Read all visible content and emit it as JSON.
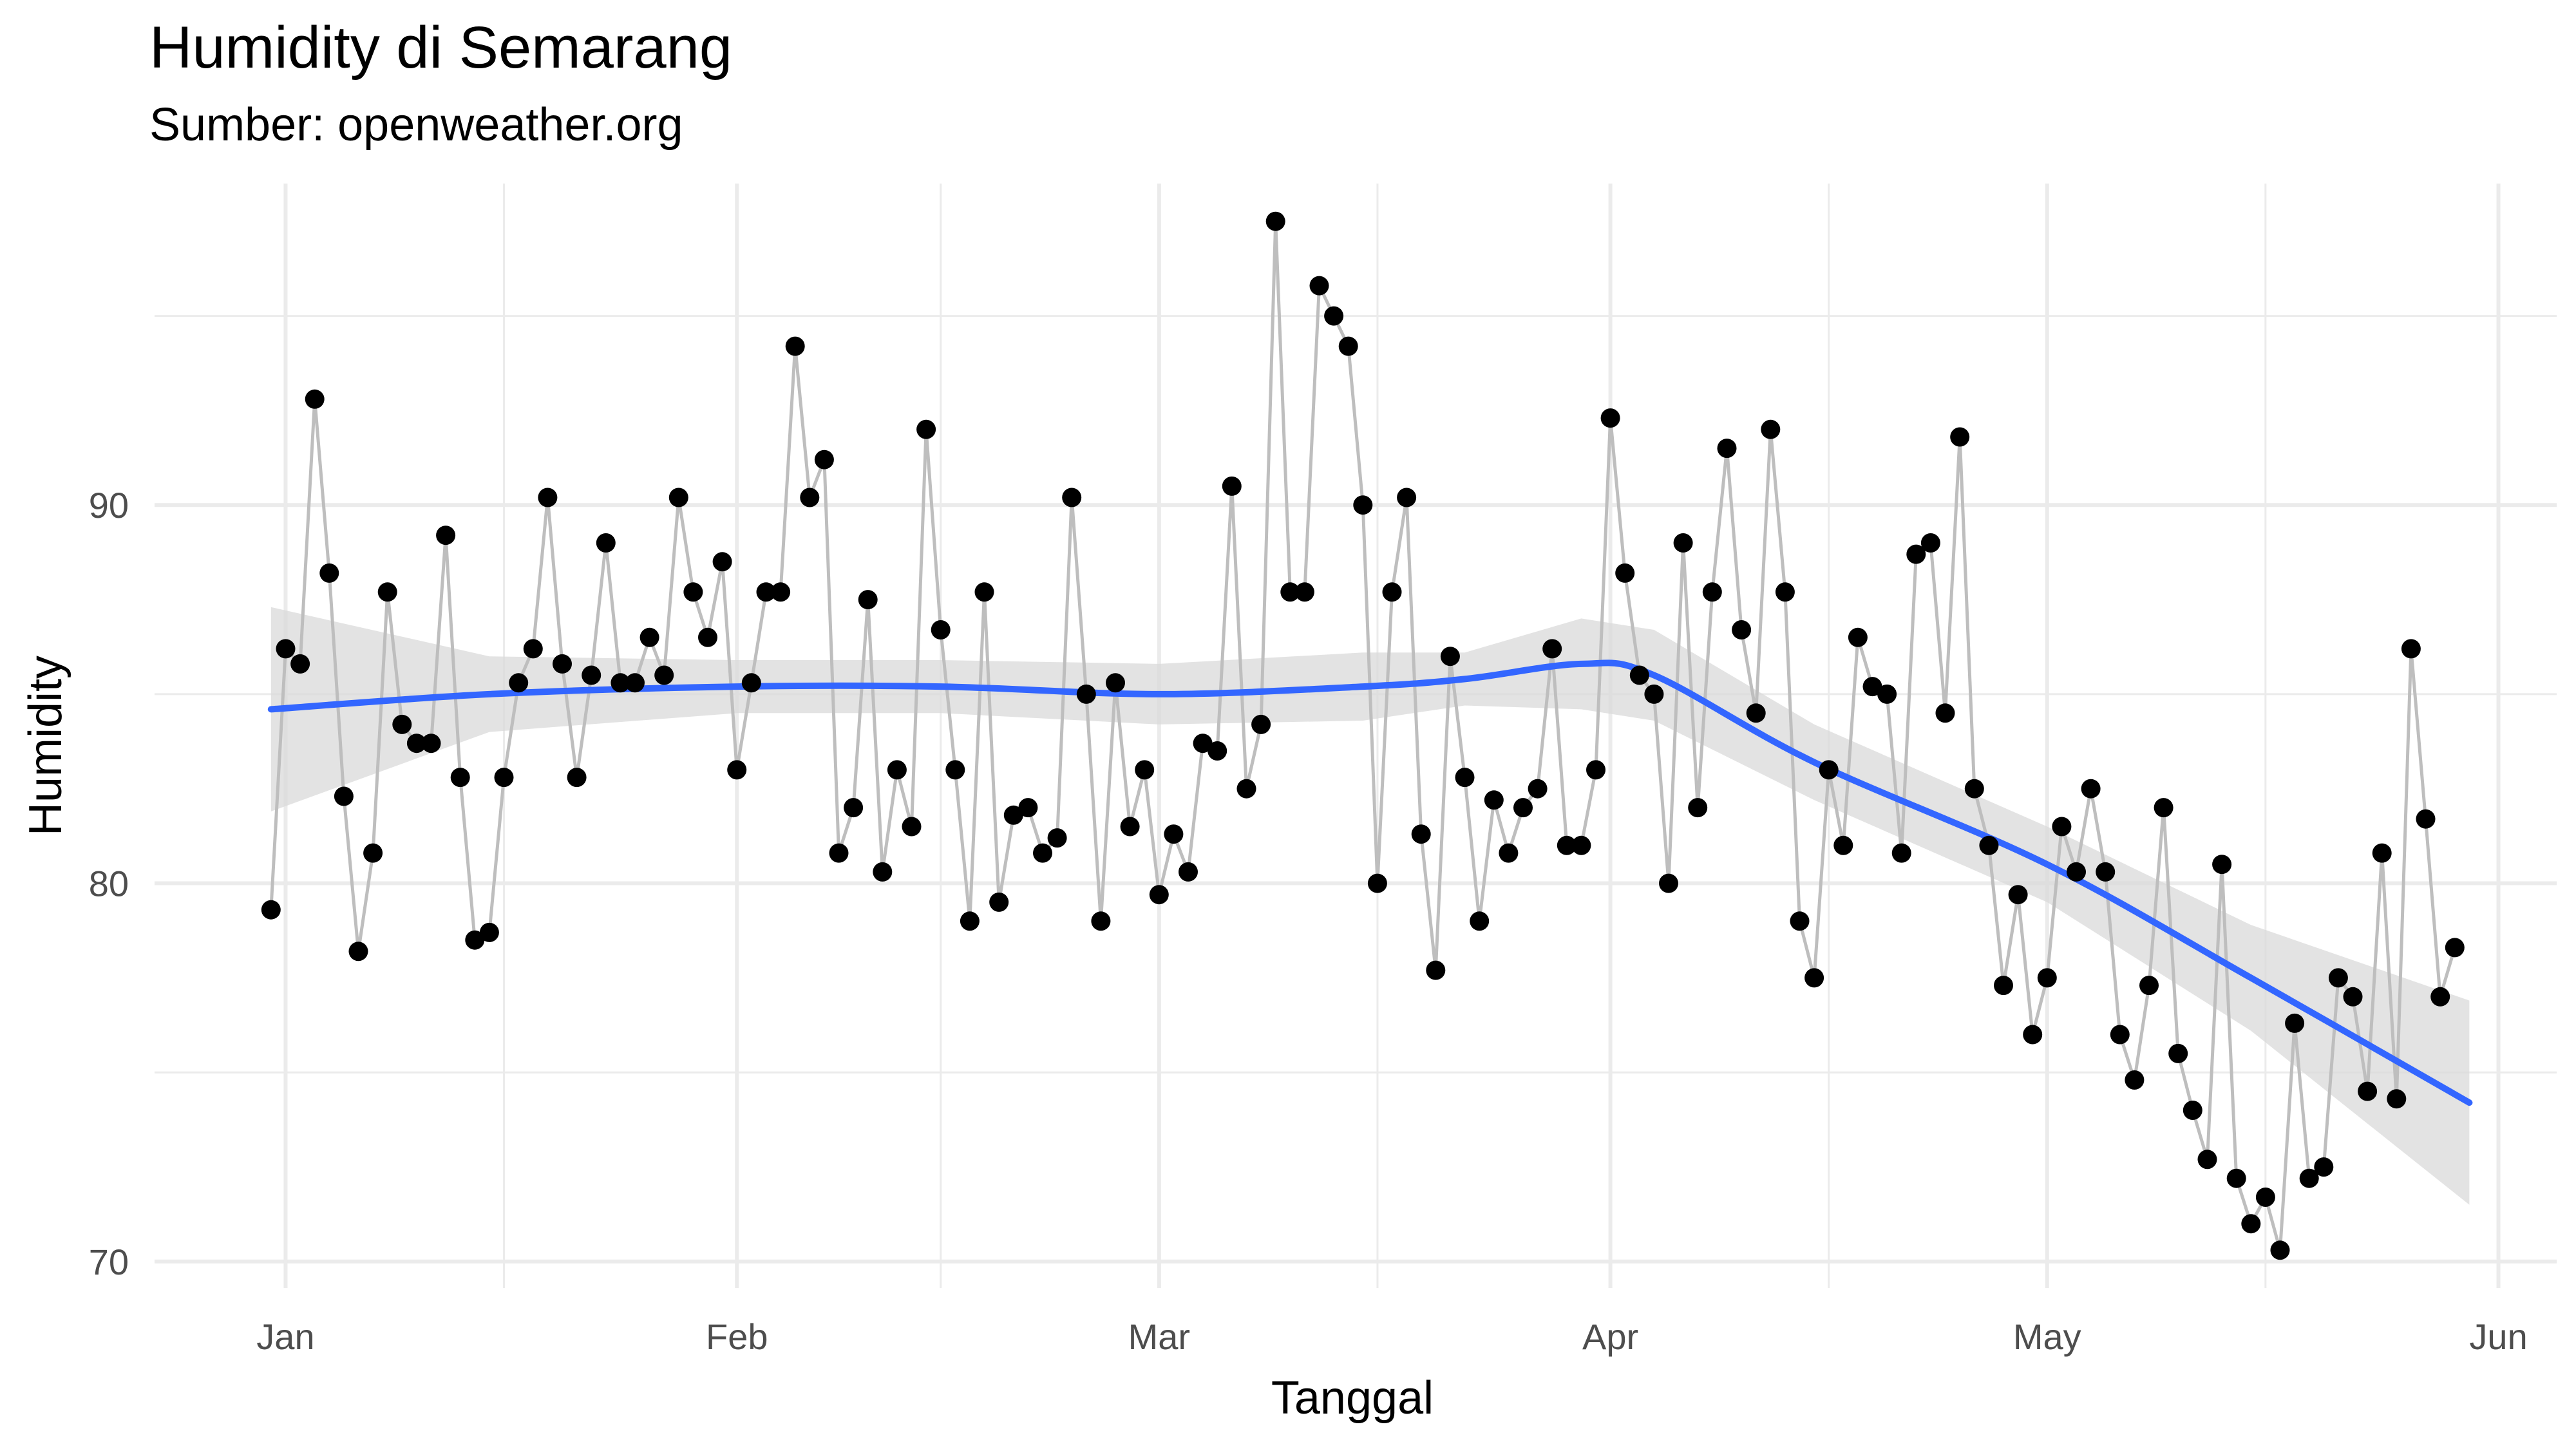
{
  "chart_data": {
    "type": "line",
    "title": "Humidity di Semarang",
    "subtitle": "Sumber: openweather.org",
    "xlabel": "Tanggal",
    "ylabel": "Humidity",
    "grid": true,
    "legend": "none",
    "x_ticks": [
      {
        "date": "2024-01-01",
        "label": "Jan"
      },
      {
        "date": "2024-02-01",
        "label": "Feb"
      },
      {
        "date": "2024-03-01",
        "label": "Mar"
      },
      {
        "date": "2024-04-01",
        "label": "Apr"
      },
      {
        "date": "2024-05-01",
        "label": "May"
      },
      {
        "date": "2024-06-01",
        "label": "Jun"
      }
    ],
    "x_minor_ticks": [
      "2024-01-16",
      "2024-02-15",
      "2024-03-16",
      "2024-04-16",
      "2024-05-16"
    ],
    "y_ticks": [
      70,
      80,
      90
    ],
    "y_minor_ticks": [
      75,
      85,
      95
    ],
    "xlim": [
      "2023-12-23",
      "2024-06-05"
    ],
    "ylim": [
      69.3,
      98.5
    ],
    "colors": {
      "line": "#bebebe",
      "points": "#000000",
      "smooth": "#3366ff",
      "band": "#d9d9d9",
      "grid": "#ebebeb"
    },
    "series": [
      {
        "start_date": "2023-12-31",
        "values": [
          79.3,
          86.2,
          85.8,
          92.8,
          88.2,
          82.3,
          78.2,
          80.8,
          87.7,
          84.2,
          83.7,
          83.7,
          89.2,
          82.8,
          78.5,
          78.7,
          82.8,
          85.3,
          86.2,
          90.2,
          85.8,
          82.8,
          85.5,
          89.0,
          85.3,
          85.3,
          86.5,
          85.5,
          90.2,
          87.7,
          86.5,
          88.5,
          83.0,
          85.3,
          87.7,
          87.7,
          94.2,
          90.2,
          91.2,
          80.8,
          82.0,
          87.5,
          80.3,
          83.0,
          81.5,
          92.0,
          86.7,
          83.0,
          79.0,
          87.7,
          79.5,
          81.8,
          82.0,
          80.8,
          81.2,
          90.2,
          85.0,
          79.0,
          85.3,
          81.5,
          83.0,
          79.7,
          81.3,
          80.3,
          83.7,
          83.5,
          90.5,
          82.5,
          84.2,
          97.5,
          87.7,
          87.7,
          95.8,
          95.0,
          94.2,
          90.0,
          80.0,
          87.7,
          90.2,
          81.3,
          77.7,
          86.0,
          82.8,
          79.0,
          82.2,
          80.8,
          82.0,
          82.5,
          86.2,
          81.0,
          81.0,
          83.0,
          92.3,
          88.2,
          85.5,
          85.0,
          80.0,
          89.0,
          82.0,
          87.7,
          91.5,
          86.7,
          84.5,
          92.0,
          87.7,
          79.0,
          77.5,
          83.0,
          81.0,
          86.5,
          85.2,
          85.0,
          80.8,
          88.7,
          89.0,
          84.5,
          91.8,
          82.5,
          81.0,
          77.3,
          79.7,
          76.0,
          77.5,
          81.5,
          80.3,
          82.5,
          80.3,
          76.0,
          74.8,
          77.3,
          82.0,
          75.5,
          74.0,
          72.7,
          80.5,
          72.2,
          71.0,
          71.7,
          70.3,
          76.3,
          72.2,
          72.5,
          77.5,
          77.0,
          74.5,
          80.8,
          74.3,
          86.2,
          81.7,
          77.0,
          78.3
        ]
      },
      {
        "type": "smooth",
        "x": [
          "2023-12-31",
          "2024-01-15",
          "2024-02-01",
          "2024-02-15",
          "2024-03-01",
          "2024-03-15",
          "2024-03-22",
          "2024-03-30",
          "2024-04-04",
          "2024-04-15",
          "2024-05-01",
          "2024-05-15",
          "2024-05-30"
        ],
        "y": [
          84.6,
          85.0,
          85.2,
          85.2,
          85.0,
          85.2,
          85.4,
          85.8,
          85.5,
          83.2,
          80.5,
          77.5,
          74.2
        ],
        "lower": [
          81.9,
          84.0,
          84.5,
          84.5,
          84.2,
          84.3,
          84.7,
          84.6,
          84.3,
          82.2,
          79.5,
          76.1,
          71.5
        ],
        "upper": [
          87.3,
          86.0,
          85.9,
          85.9,
          85.8,
          86.1,
          86.1,
          87.0,
          86.7,
          84.2,
          81.5,
          78.9,
          76.9
        ]
      }
    ]
  }
}
